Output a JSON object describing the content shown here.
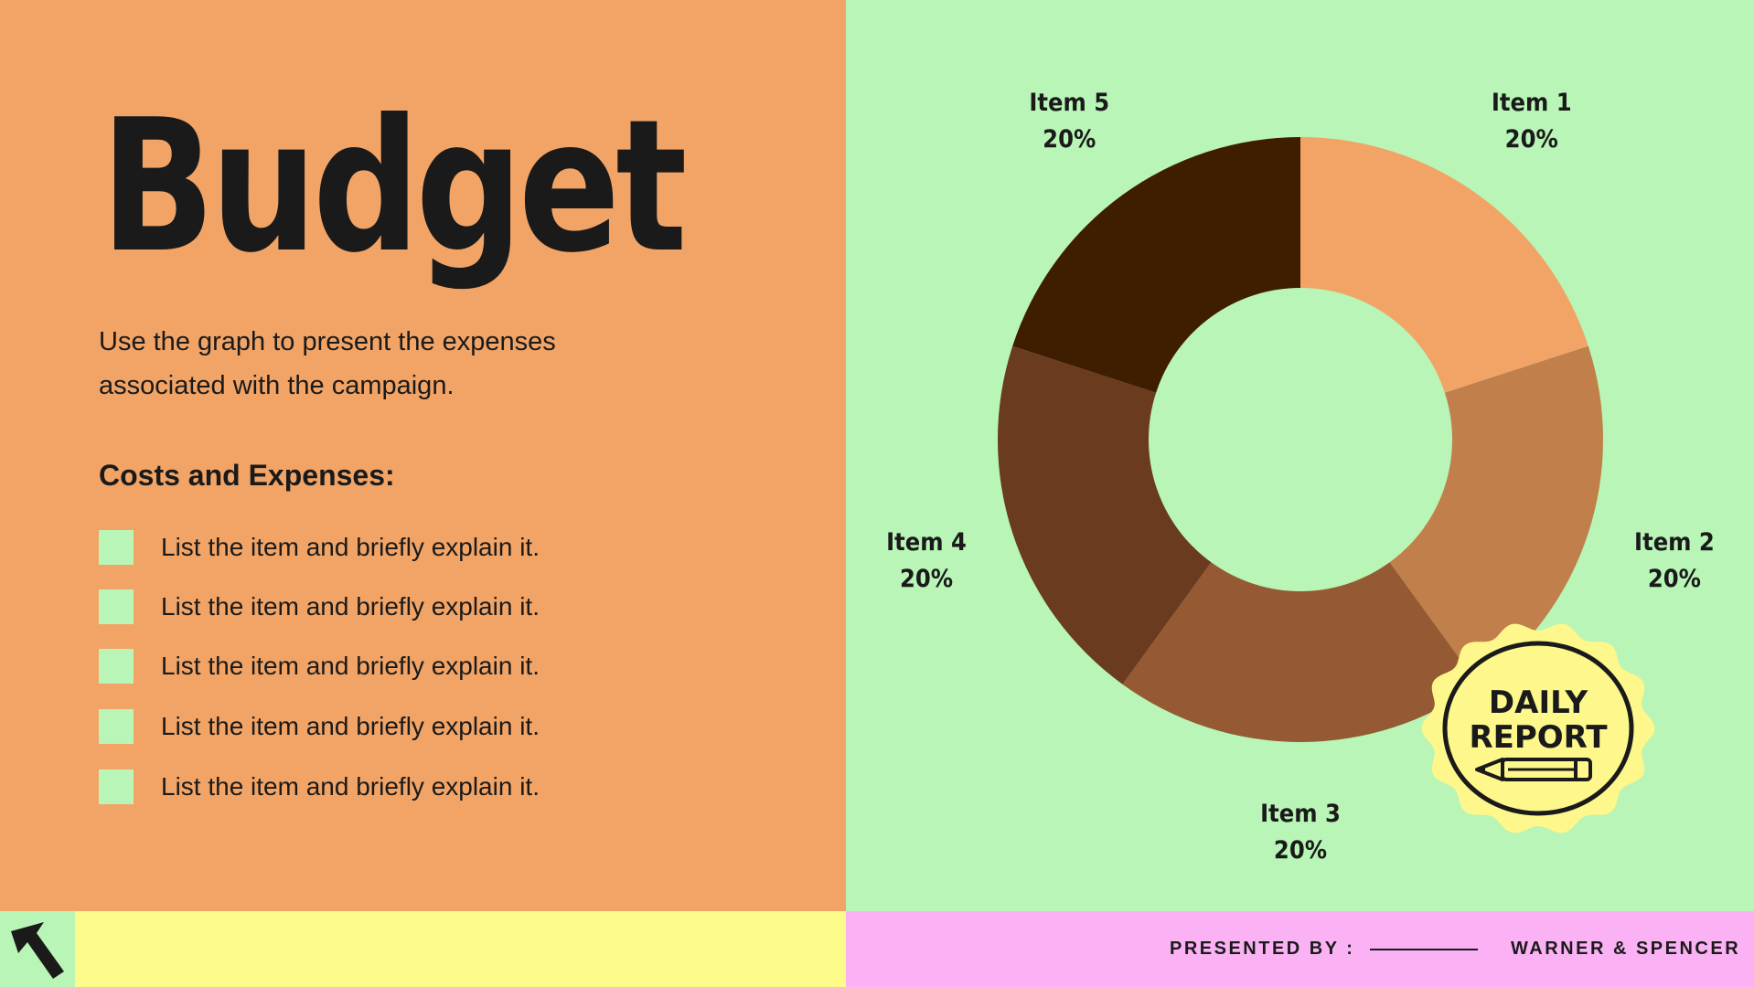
{
  "slide": {
    "title": "Budget",
    "subtitle": "Use the graph to present the expenses associated with the campaign.",
    "costs_heading": "Costs and Expenses:",
    "list_items": [
      "List the item and briefly explain it.",
      "List the item and briefly explain it.",
      "List the item and briefly explain it.",
      "List the item and briefly explain it.",
      "List the item and briefly explain it."
    ]
  },
  "badge": {
    "line1": "DAILY",
    "line2": "REPORT",
    "icon": "pencil-icon"
  },
  "footer": {
    "presented_by": "PRESENTED BY :",
    "company": "WARNER & SPENCER",
    "icon": "arrow-up-left-icon"
  },
  "colors": {
    "left_bg": "#f2a466",
    "right_bg": "#b8f5b6",
    "footer_yellow": "#fdfb8a",
    "footer_pink": "#fbb2f4",
    "badge_yellow": "#fdf78c"
  },
  "chart_data": {
    "type": "pie",
    "donut": true,
    "categories": [
      "Item 1",
      "Item 2",
      "Item 3",
      "Item 4",
      "Item 5"
    ],
    "values": [
      20,
      20,
      20,
      20,
      20
    ],
    "value_labels": [
      "20%",
      "20%",
      "20%",
      "20%",
      "20%"
    ],
    "colors": [
      "#f2a466",
      "#c17f4b",
      "#955a33",
      "#6a3b1e",
      "#3f1d00"
    ],
    "legend": "none"
  }
}
